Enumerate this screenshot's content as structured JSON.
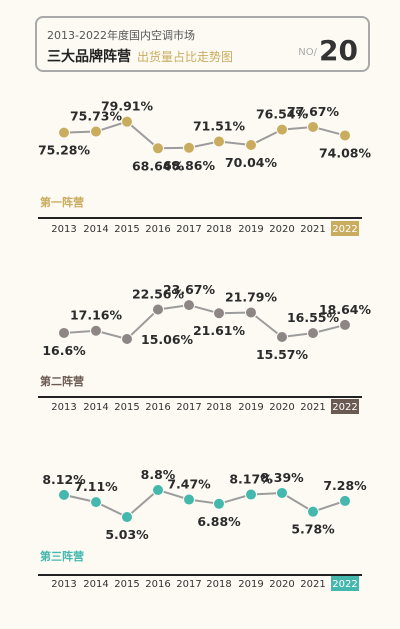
{
  "header": {
    "line1": "2013-2022年度国内空调市场",
    "title": "三大品牌阵营",
    "subtitle": "出货量占比走势图",
    "no_label": "NO/",
    "no_value": "20"
  },
  "colors": {
    "gold": "#c9ac5e",
    "gray_dot": "#8e8585",
    "teal": "#44b8ad",
    "line": "#9c9c9c",
    "dark": "#2b2b2b",
    "brown_badge": "#6b5a52"
  },
  "chart_data": [
    {
      "type": "line",
      "series_label": "第一阵营",
      "x": [
        "2013",
        "2014",
        "2015",
        "2016",
        "2017",
        "2018",
        "2019",
        "2020",
        "2021",
        "2022"
      ],
      "y": [
        75.28,
        75.73,
        79.91,
        68.64,
        68.86,
        71.51,
        70.04,
        76.54,
        77.67,
        74.08
      ],
      "labels": [
        "75.28%",
        "75.73%",
        "79.91%",
        "68.64%",
        "68.86%",
        "71.51%",
        "70.04%",
        "76.54%",
        "77.67%",
        "74.08%"
      ],
      "ylim": [
        62,
        84
      ],
      "label_pos": [
        "below",
        "above",
        "above",
        "below",
        "below",
        "above",
        "below",
        "above",
        "above",
        "below"
      ],
      "dot_color": "#c9ac5e",
      "badge_color": "#c9ac5e"
    },
    {
      "type": "line",
      "series_label": "第二阵营",
      "x": [
        "2013",
        "2014",
        "2015",
        "2016",
        "2017",
        "2018",
        "2019",
        "2020",
        "2021",
        "2022"
      ],
      "y": [
        16.6,
        17.16,
        15.06,
        22.56,
        23.67,
        21.61,
        21.79,
        15.57,
        16.55,
        18.64
      ],
      "labels": [
        "16.6%",
        "17.16%",
        "15.06%",
        "22.56%",
        "23.67%",
        "21.61%",
        "21.79%",
        "15.57%",
        "16.55%",
        "18.64%"
      ],
      "ylim": [
        11,
        27
      ],
      "label_pos": [
        "below",
        "above",
        "right",
        "above",
        "above",
        "below",
        "above",
        "below",
        "above",
        "above"
      ],
      "dot_color": "#8e8585",
      "badge_color": "#6b5a52"
    },
    {
      "type": "line",
      "series_label": "第三阵营",
      "x": [
        "2013",
        "2014",
        "2015",
        "2016",
        "2017",
        "2018",
        "2019",
        "2020",
        "2021",
        "2022"
      ],
      "y": [
        8.12,
        7.11,
        5.03,
        8.8,
        7.47,
        6.88,
        8.17,
        8.39,
        5.78,
        7.28
      ],
      "labels": [
        "8.12%",
        "7.11%",
        "5.03%",
        "8.8%",
        "7.47%",
        "6.88%",
        "8.17%",
        "8.39%",
        "5.78%",
        "7.28%"
      ],
      "ylim": [
        3.5,
        10.2
      ],
      "label_pos": [
        "above",
        "above",
        "below",
        "above",
        "above",
        "below",
        "above",
        "above",
        "below",
        "above"
      ],
      "dot_color": "#44b8ad",
      "badge_color": "#44b8ad"
    }
  ]
}
